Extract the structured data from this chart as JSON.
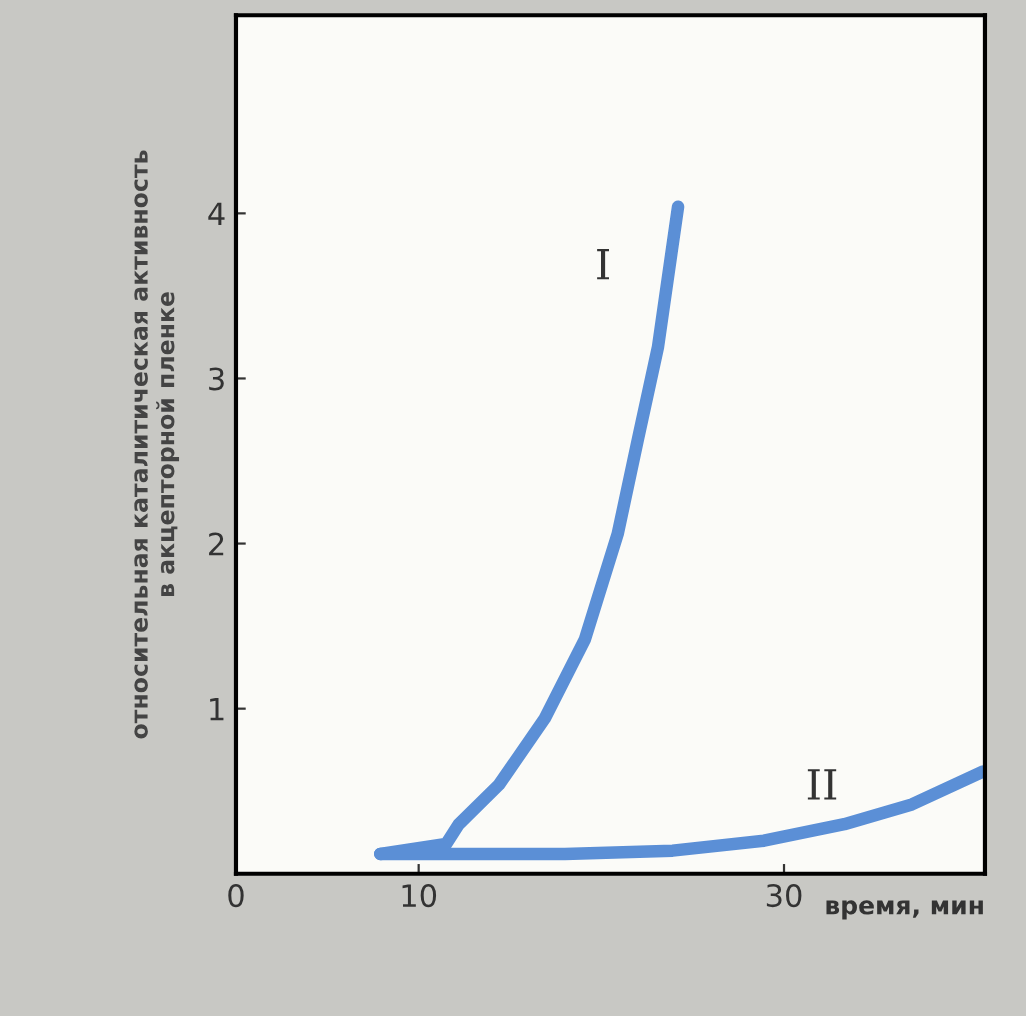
{
  "chart_data": {
    "type": "line",
    "xlabel": "время, мин",
    "ylabel": "относительная каталитическая активность\nв акцепторной пленке",
    "xlim": [
      0,
      41
    ],
    "ylim": [
      0,
      5.2
    ],
    "xticks": [
      0,
      10,
      30
    ],
    "yticks": [
      1,
      2,
      3,
      4
    ],
    "grid": false,
    "marker": "none",
    "line_style": "solid",
    "series": [
      {
        "name": "I",
        "color": "#5b8fd6",
        "x": [
          7.9,
          11.5,
          12.2,
          14.4,
          16.9,
          19.1,
          20.9,
          22.0,
          23.1,
          24.2
        ],
        "values": [
          0.12,
          0.18,
          0.3,
          0.54,
          0.94,
          1.42,
          2.06,
          2.63,
          3.19,
          4.04
        ]
      },
      {
        "name": "II",
        "color": "#5b8fd6",
        "x": [
          7.9,
          18,
          23.9,
          28.9,
          33.3,
          37,
          40.9
        ],
        "values": [
          0.12,
          0.12,
          0.14,
          0.2,
          0.3,
          0.42,
          0.62
        ]
      }
    ]
  }
}
